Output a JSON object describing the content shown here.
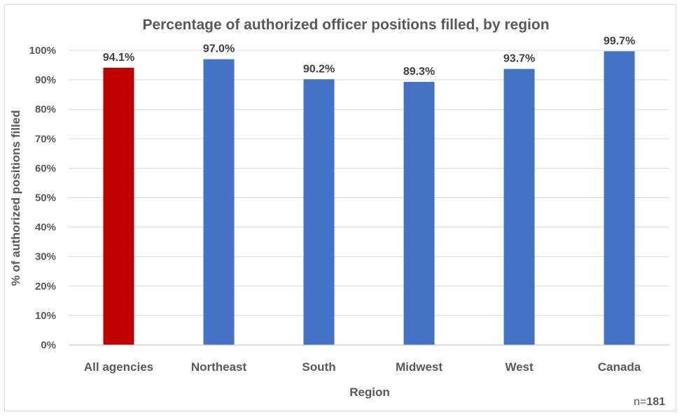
{
  "chart_data": {
    "type": "bar",
    "title": "Percentage of authorized officer positions filled, by region",
    "xlabel": "Region",
    "ylabel": "% of authorized positions filled",
    "categories": [
      "All agencies",
      "Northeast",
      "South",
      "Midwest",
      "West",
      "Canada"
    ],
    "values": [
      94.1,
      97.0,
      90.2,
      89.3,
      93.7,
      99.7
    ],
    "data_labels": [
      "94.1%",
      "97.0%",
      "90.2%",
      "89.3%",
      "93.7%",
      "99.7%"
    ],
    "bar_colors": [
      "#c00000",
      "#4472c4",
      "#4472c4",
      "#4472c4",
      "#4472c4",
      "#4472c4"
    ],
    "ylim": [
      0,
      100
    ],
    "yticks": [
      0,
      10,
      20,
      30,
      40,
      50,
      60,
      70,
      80,
      90,
      100
    ],
    "ytick_labels": [
      "0%",
      "10%",
      "20%",
      "30%",
      "40%",
      "50%",
      "60%",
      "70%",
      "80%",
      "90%",
      "100%"
    ],
    "grid": true,
    "gridline_color": "#d9d9d9",
    "legend": "none"
  },
  "note": {
    "prefix": "n=",
    "value": "181"
  }
}
